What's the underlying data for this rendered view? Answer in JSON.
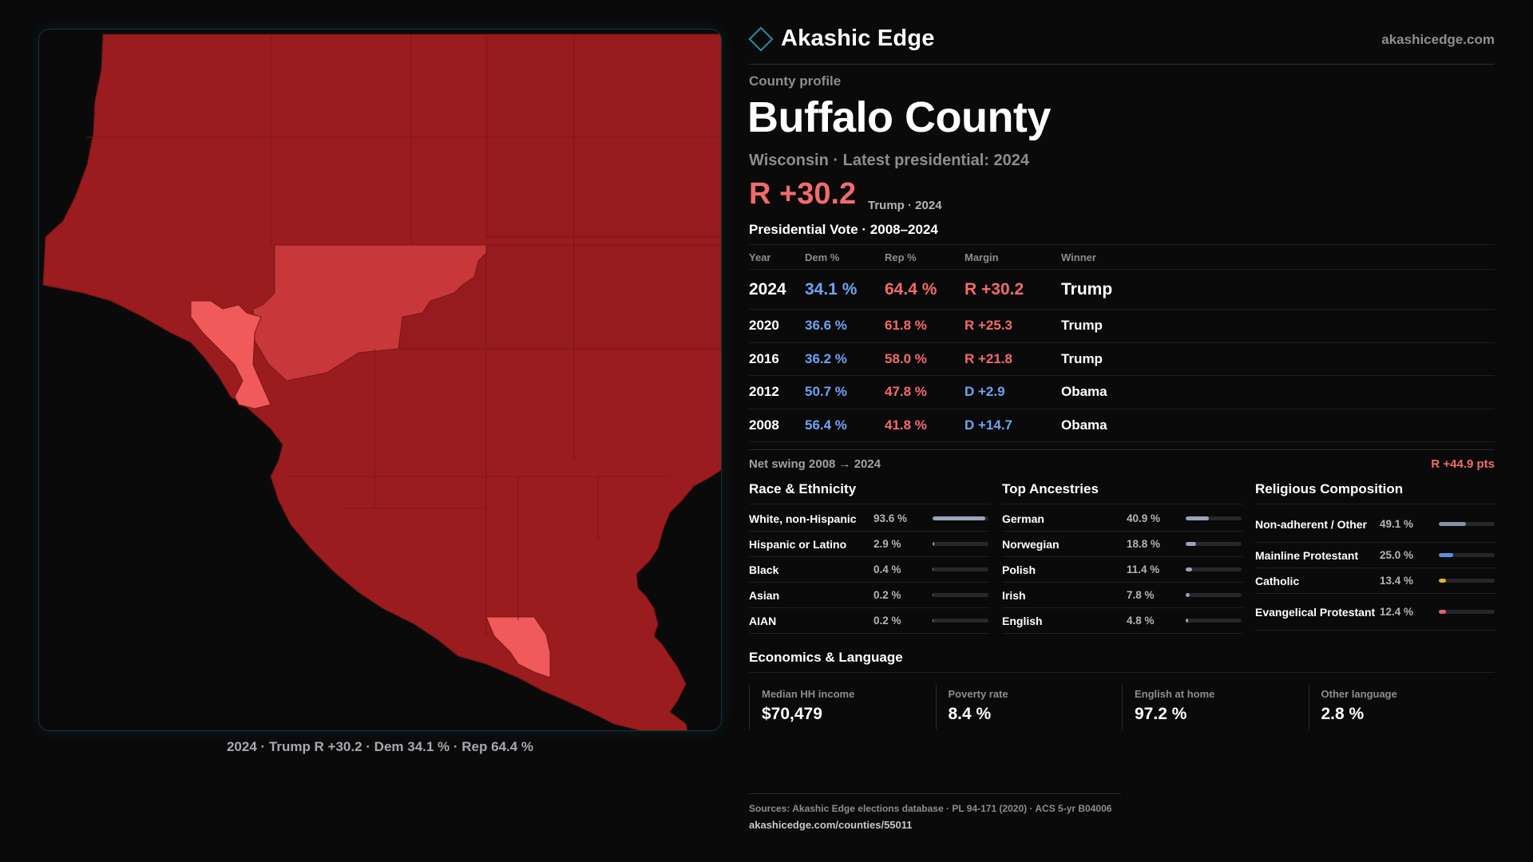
{
  "brand": {
    "name": "Akashic Edge",
    "url": "akashicedge.com"
  },
  "profile": {
    "label": "County profile",
    "county": "Buffalo County",
    "subtitle": "Wisconsin · Latest presidential: 2024",
    "headline_margin": "R +30.2",
    "headline_note": "Trump · 2024"
  },
  "map": {
    "caption": "2024 · Trump R +30.2 · Dem 34.1 % · Rep 64.4 %",
    "colors": {
      "background": "#0a0a0b",
      "strong_r": "#9a1c1f",
      "mid_r": "#c8373a",
      "light_r": "#f05a5a",
      "border": "#6e1214"
    }
  },
  "vote": {
    "title": "Presidential Vote · 2008–2024",
    "headers": {
      "year": "Year",
      "dem": "Dem %",
      "rep": "Rep %",
      "margin": "Margin",
      "winner": "Winner"
    },
    "rows": [
      {
        "year": "2024",
        "dem": "34.1 %",
        "rep": "64.4 %",
        "margin": "R +30.2",
        "winner": "Trump"
      },
      {
        "year": "2020",
        "dem": "36.6 %",
        "rep": "61.8 %",
        "margin": "R +25.3",
        "winner": "Trump"
      },
      {
        "year": "2016",
        "dem": "36.2 %",
        "rep": "58.0 %",
        "margin": "R +21.8",
        "winner": "Trump"
      },
      {
        "year": "2012",
        "dem": "50.7 %",
        "rep": "47.8 %",
        "margin": "D +2.9",
        "winner": "Obama"
      },
      {
        "year": "2008",
        "dem": "56.4 %",
        "rep": "41.8 %",
        "margin": "D +14.7",
        "winner": "Obama"
      }
    ],
    "swing_label": "Net swing 2008 → 2024",
    "swing_value": "R +44.9 pts"
  },
  "race": {
    "title": "Race & Ethnicity",
    "items": [
      {
        "label": "White, non-Hispanic",
        "pct": "93.6 %",
        "value": 93.6,
        "color": "#9aa4b8"
      },
      {
        "label": "Hispanic or Latino",
        "pct": "2.9 %",
        "value": 2.9,
        "color": "#e0a030"
      },
      {
        "label": "Black",
        "pct": "0.4 %",
        "value": 0.4,
        "color": "#9aa4b8"
      },
      {
        "label": "Asian",
        "pct": "0.2 %",
        "value": 0.2,
        "color": "#3aa58a"
      },
      {
        "label": "AIAN",
        "pct": "0.2 %",
        "value": 0.2,
        "color": "#9aa4b8"
      }
    ]
  },
  "ancestry": {
    "title": "Top Ancestries",
    "items": [
      {
        "label": "German",
        "pct": "40.9 %",
        "value": 40.9,
        "color": "#9aa4b8"
      },
      {
        "label": "Norwegian",
        "pct": "18.8 %",
        "value": 18.8,
        "color": "#9aa4b8"
      },
      {
        "label": "Polish",
        "pct": "11.4 %",
        "value": 11.4,
        "color": "#9aa4b8"
      },
      {
        "label": "Irish",
        "pct": "7.8 %",
        "value": 7.8,
        "color": "#9aa4b8"
      },
      {
        "label": "English",
        "pct": "4.8 %",
        "value": 4.8,
        "color": "#9aa4b8"
      }
    ]
  },
  "religion": {
    "title": "Religious Composition",
    "items": [
      {
        "label": "Non-adherent / Other",
        "pct": "49.1 %",
        "value": 49.1,
        "color": "#8a93a6",
        "tall": true
      },
      {
        "label": "Mainline Protestant",
        "pct": "25.0 %",
        "value": 25.0,
        "color": "#5b8fe0",
        "tall": false
      },
      {
        "label": "Catholic",
        "pct": "13.4 %",
        "value": 13.4,
        "color": "#e0b030",
        "tall": false
      },
      {
        "label": "Evangelical Protestant",
        "pct": "12.4 %",
        "value": 12.4,
        "color": "#e06070",
        "tall": true
      }
    ]
  },
  "economics": {
    "title": "Economics & Language",
    "items": [
      {
        "label": "Median HH income",
        "value": "$70,479"
      },
      {
        "label": "Poverty rate",
        "value": "8.4 %"
      },
      {
        "label": "English at home",
        "value": "97.2 %"
      },
      {
        "label": "Other language",
        "value": "2.8 %"
      }
    ]
  },
  "sources": {
    "text": "Sources: Akashic Edge elections database · PL 94-171 (2020) · ACS 5-yr B04006",
    "url": "akashicedge.com/counties/55011"
  }
}
